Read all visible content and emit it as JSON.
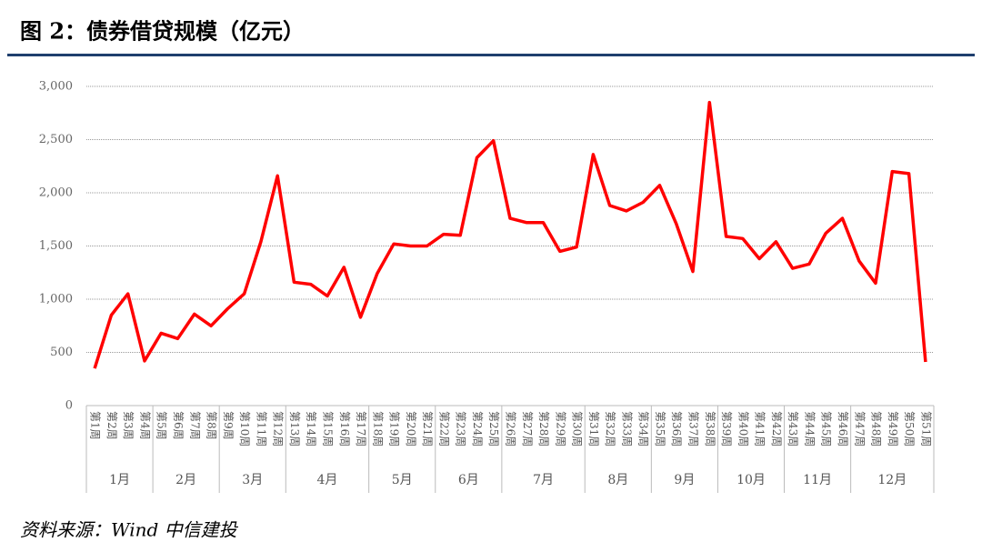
{
  "chart_data": {
    "type": "line",
    "title": "图 2：债券借贷规模（亿元）",
    "source": "资料来源：Wind 中信建投",
    "color": "#ff0000",
    "grid": true,
    "ylim": [
      0,
      3000
    ],
    "yticks": [
      0,
      500,
      {
        "value": 1000,
        "label": "1,000"
      },
      {
        "value": 1500,
        "label": "1,500"
      },
      {
        "value": 2000,
        "label": "2,000"
      },
      {
        "value": 2500,
        "label": "2,500"
      },
      {
        "value": 3000,
        "label": "3,000"
      }
    ],
    "groups": [
      {
        "label": "1月",
        "categories": [
          "第1周",
          "第2周",
          "第3周",
          "第4周"
        ]
      },
      {
        "label": "2月",
        "categories": [
          "第5周",
          "第6周",
          "第7周",
          "第8周"
        ]
      },
      {
        "label": "3月",
        "categories": [
          "第9周",
          "第10周",
          "第11周",
          "第12周"
        ]
      },
      {
        "label": "4月",
        "categories": [
          "第13周",
          "第14周",
          "第15周",
          "第16周",
          "第17周"
        ]
      },
      {
        "label": "5月",
        "categories": [
          "第18周",
          "第19周",
          "第20周",
          "第21周"
        ]
      },
      {
        "label": "6月",
        "categories": [
          "第22周",
          "第23周",
          "第24周",
          "第25周"
        ]
      },
      {
        "label": "7月",
        "categories": [
          "第26周",
          "第27周",
          "第28周",
          "第29周",
          "第30周"
        ]
      },
      {
        "label": "8月",
        "categories": [
          "第31周",
          "第32周",
          "第33周",
          "第34周"
        ]
      },
      {
        "label": "9月",
        "categories": [
          "第35周",
          "第36周",
          "第37周",
          "第38周"
        ]
      },
      {
        "label": "10月",
        "categories": [
          "第39周",
          "第40周",
          "第41周",
          "第42周"
        ]
      },
      {
        "label": "11月",
        "categories": [
          "第43周",
          "第44周",
          "第45周",
          "第46周"
        ]
      },
      {
        "label": "12月",
        "categories": [
          "第47周",
          "第48周",
          "第49周",
          "第50周",
          "第51周"
        ]
      }
    ],
    "values": [
      350,
      850,
      1050,
      420,
      680,
      630,
      860,
      750,
      910,
      1050,
      1540,
      2160,
      1160,
      1140,
      1030,
      1300,
      830,
      1240,
      1520,
      1500,
      1500,
      1610,
      1600,
      2330,
      2490,
      1760,
      1720,
      1720,
      1450,
      1490,
      2360,
      1880,
      1830,
      1910,
      2070,
      1710,
      1260,
      2850,
      1590,
      1570,
      1380,
      1540,
      1290,
      1330,
      1620,
      1760,
      1360,
      1150,
      2200,
      2180,
      410
    ]
  }
}
